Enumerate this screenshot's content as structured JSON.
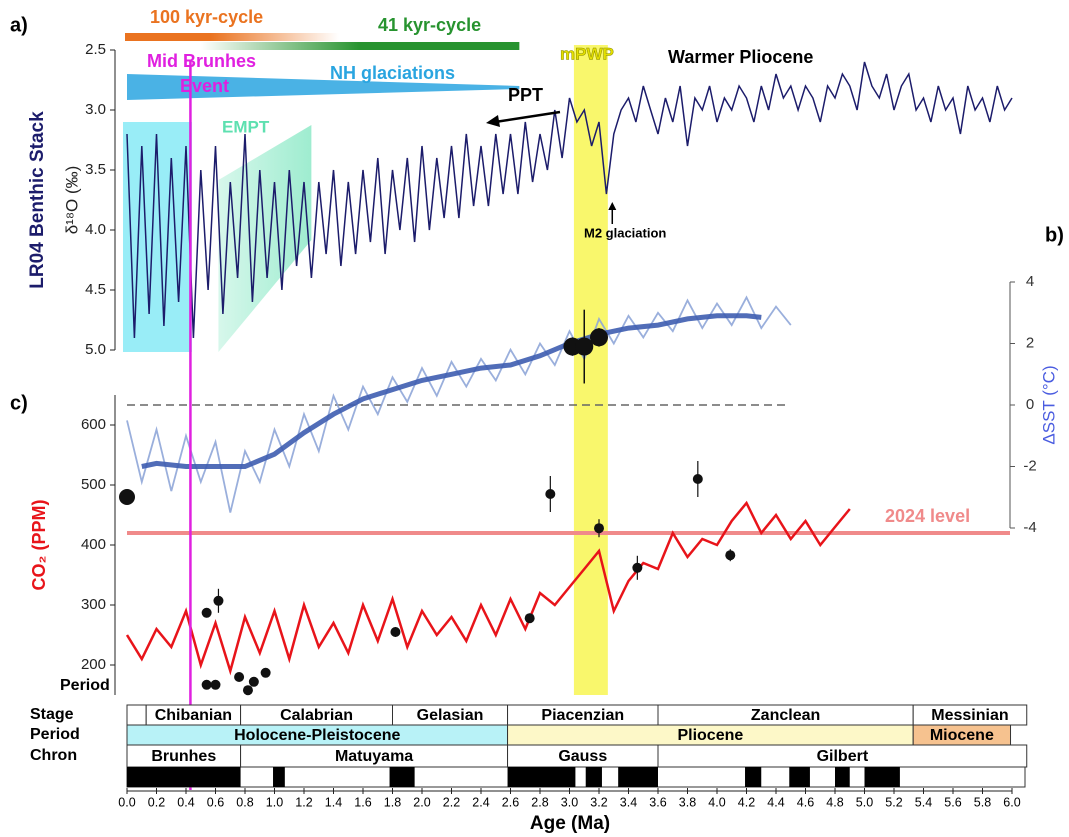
{
  "chart_data": [
    {
      "type": "line",
      "panel_label": "a)",
      "ylabel": "δ¹⁸O (‰)",
      "y_inverted": true,
      "xlim": [
        0,
        6
      ],
      "ylim": [
        2.5,
        5.0
      ],
      "yticks": [
        2.5,
        {
          "value": 3,
          "label": "3.0"
        },
        3.5,
        {
          "value": 4,
          "label": "4.0"
        },
        4.5,
        {
          "value": 5,
          "label": "5.0"
        }
      ],
      "series": [
        {
          "name": "LR04 Benthic Stack",
          "color": "#1c1c6b",
          "x": [
            0,
            0.05,
            0.1,
            0.15,
            0.2,
            0.25,
            0.3,
            0.35,
            0.4,
            0.45,
            0.5,
            0.55,
            0.6,
            0.65,
            0.7,
            0.75,
            0.8,
            0.85,
            0.9,
            0.95,
            1,
            1.05,
            1.1,
            1.15,
            1.2,
            1.25,
            1.3,
            1.35,
            1.4,
            1.45,
            1.5,
            1.55,
            1.6,
            1.65,
            1.7,
            1.75,
            1.8,
            1.85,
            1.9,
            1.95,
            2,
            2.05,
            2.1,
            2.15,
            2.2,
            2.25,
            2.3,
            2.35,
            2.4,
            2.45,
            2.5,
            2.55,
            2.6,
            2.65,
            2.7,
            2.75,
            2.8,
            2.85,
            2.9,
            2.95,
            3,
            3.05,
            3.1,
            3.15,
            3.2,
            3.25,
            3.3,
            3.35,
            3.4,
            3.45,
            3.5,
            3.55,
            3.6,
            3.65,
            3.7,
            3.75,
            3.8,
            3.85,
            3.9,
            3.95,
            4,
            4.05,
            4.1,
            4.15,
            4.2,
            4.25,
            4.3,
            4.35,
            4.4,
            4.45,
            4.5,
            4.55,
            4.6,
            4.65,
            4.7,
            4.75,
            4.8,
            4.85,
            4.9,
            4.95,
            5,
            5.05,
            5.1,
            5.15,
            5.2,
            5.25,
            5.3,
            5.35,
            5.4,
            5.45,
            5.5,
            5.55,
            5.6,
            5.65,
            5.7,
            5.75,
            5.8,
            5.85,
            5.9,
            5.95,
            6
          ],
          "values": [
            3.2,
            4.9,
            3.3,
            4.7,
            3.2,
            4.8,
            3.4,
            4.6,
            3.3,
            4.9,
            3.5,
            4.5,
            3.3,
            4.7,
            3.6,
            4.4,
            3.2,
            4.6,
            3.5,
            4.4,
            3.6,
            4.5,
            3.5,
            4.3,
            3.6,
            4.4,
            3.6,
            4.2,
            3.5,
            4.3,
            3.6,
            4.2,
            3.5,
            4.1,
            3.4,
            4.2,
            3.5,
            4.0,
            3.4,
            4.1,
            3.3,
            4.0,
            3.4,
            3.9,
            3.3,
            3.9,
            3.2,
            3.8,
            3.3,
            3.8,
            3.2,
            3.7,
            3.2,
            3.7,
            3.1,
            3.6,
            3.2,
            3.5,
            3.0,
            3.4,
            2.9,
            3.1,
            3.0,
            3.3,
            3.1,
            3.7,
            3.2,
            3.0,
            2.9,
            3.1,
            2.8,
            3.0,
            3.2,
            2.9,
            3.1,
            2.8,
            3.3,
            2.9,
            3.0,
            2.8,
            3.1,
            2.9,
            3.0,
            2.8,
            2.9,
            3.1,
            2.8,
            3.0,
            2.7,
            2.9,
            2.8,
            3.0,
            2.8,
            2.9,
            3.1,
            2.8,
            2.9,
            2.7,
            2.8,
            3.0,
            2.6,
            2.8,
            2.9,
            2.7,
            3.0,
            2.8,
            2.7,
            3.0,
            2.9,
            3.1,
            2.8,
            3.0,
            2.9,
            3.2,
            2.8,
            3.0,
            2.9,
            3.1,
            2.8,
            3.0,
            2.9
          ]
        }
      ],
      "annotations": [
        {
          "kind": "box",
          "color": "#7fe8f5",
          "x": [
            0,
            0.44
          ]
        },
        {
          "kind": "trapezoid",
          "label": "EMPT",
          "color": "#5ee0b0",
          "x": [
            0.62,
            1.25
          ]
        },
        {
          "kind": "band",
          "label": "mPWP",
          "color": "#f7f43b",
          "x": [
            3.03,
            3.26
          ]
        },
        {
          "kind": "fade-bar",
          "label": "100 kyr-cycle",
          "color": "#ea7320",
          "x": [
            0,
            1.45
          ]
        },
        {
          "kind": "rise-bar",
          "label": "41 kyr-cycle",
          "color": "#27932f",
          "x": [
            0.5,
            2.66
          ]
        },
        {
          "kind": "wedge",
          "label": "NH glaciations",
          "color": "#2aa5e0",
          "x": [
            0,
            2.66
          ]
        },
        {
          "kind": "vline",
          "label": [
            "Mid Brunhes",
            "Event"
          ],
          "color": "#e020e0",
          "x": 0.43
        },
        {
          "kind": "text",
          "label": "Warmer Pliocene"
        },
        {
          "kind": "arrow-text",
          "label": "PPT"
        },
        {
          "kind": "up-arrow",
          "label": "M2 glaciation",
          "x": 3.29
        }
      ]
    },
    {
      "type": "line",
      "panel_label": "b)",
      "ylabel": "ΔSST (°C)",
      "xlim": [
        0,
        6
      ],
      "ylim": [
        -4,
        4
      ],
      "yticks": [
        -4,
        -2,
        0,
        2,
        4
      ],
      "zero_line": 0,
      "series": [
        {
          "color": "#8fa6d8",
          "x": [
            0,
            0.1,
            0.2,
            0.3,
            0.4,
            0.5,
            0.6,
            0.7,
            0.8,
            0.9,
            1,
            1.1,
            1.2,
            1.3,
            1.4,
            1.5,
            1.6,
            1.7,
            1.8,
            1.9,
            2,
            2.1,
            2.2,
            2.3,
            2.4,
            2.5,
            2.6,
            2.7,
            2.8,
            2.9,
            3,
            3.1,
            3.2,
            3.3,
            3.4,
            3.5,
            3.6,
            3.7,
            3.8,
            3.9,
            4,
            4.1,
            4.2,
            4.3,
            4.4,
            4.5
          ],
          "values": [
            -0.5,
            -2.5,
            -0.8,
            -2.8,
            -1.0,
            -2.5,
            -1.2,
            -3.5,
            -1.5,
            -2.5,
            -0.8,
            -2.0,
            -0.3,
            -1.5,
            0.3,
            -0.8,
            0.6,
            -0.3,
            0.9,
            0.1,
            1.2,
            0.3,
            1.4,
            0.6,
            1.5,
            0.8,
            1.8,
            1.0,
            2.0,
            1.3,
            2.4,
            1.5,
            2.8,
            2.0,
            2.9,
            2.2,
            3.0,
            2.4,
            3.4,
            2.5,
            3.3,
            2.6,
            3.5,
            2.5,
            3.2,
            2.6
          ]
        },
        {
          "color": "#3e5db0",
          "x": [
            0.1,
            0.2,
            0.4,
            0.6,
            0.8,
            1,
            1.2,
            1.4,
            1.6,
            1.8,
            2,
            2.2,
            2.4,
            2.6,
            2.8,
            3,
            3.2,
            3.4,
            3.6,
            3.8,
            4,
            4.2,
            4.3
          ],
          "values": [
            -2.0,
            -1.9,
            -2.0,
            -2.0,
            -2.0,
            -1.6,
            -0.9,
            -0.3,
            0.2,
            0.5,
            0.8,
            1.0,
            1.2,
            1.3,
            1.6,
            2.0,
            2.3,
            2.5,
            2.6,
            2.8,
            2.9,
            2.9,
            2.85
          ]
        }
      ],
      "points": {
        "color": "#111111",
        "x": [
          3.02,
          3.1,
          3.2
        ],
        "values": [
          1.9,
          1.9,
          2.2
        ],
        "errors": [
          0.3,
          1.2,
          0.3
        ]
      }
    },
    {
      "type": "line",
      "panel_label": "c)",
      "ylabel": "CO₂ (PPM)",
      "xlabel": "Age (Ma)",
      "xlim": [
        0,
        6
      ],
      "ylim": [
        150,
        650
      ],
      "yticks": [
        200,
        300,
        400,
        500,
        600
      ],
      "xticks": [
        {
          "value": 0,
          "label": "0.0"
        },
        0.2,
        0.4,
        0.6,
        0.8,
        {
          "value": 1,
          "label": "1.0"
        },
        1.2,
        1.4,
        1.6,
        1.8,
        {
          "value": 2,
          "label": "2.0"
        },
        2.2,
        2.4,
        2.6,
        2.8,
        {
          "value": 3,
          "label": "3.0"
        },
        3.2,
        3.4,
        3.6,
        3.8,
        {
          "value": 4,
          "label": "4.0"
        },
        4.2,
        4.4,
        4.6,
        4.8,
        {
          "value": 5,
          "label": "5.0"
        },
        5.2,
        5.4,
        5.6,
        5.8,
        {
          "value": 6,
          "label": "6.0"
        }
      ],
      "series": [
        {
          "color": "#e8141a",
          "x": [
            0,
            0.1,
            0.2,
            0.3,
            0.4,
            0.5,
            0.6,
            0.7,
            0.8,
            0.9,
            1,
            1.1,
            1.2,
            1.3,
            1.4,
            1.5,
            1.6,
            1.7,
            1.8,
            1.9,
            2,
            2.1,
            2.2,
            2.3,
            2.4,
            2.5,
            2.6,
            2.7,
            2.8,
            2.9,
            3,
            3.1,
            3.2,
            3.3,
            3.4,
            3.5,
            3.6,
            3.7,
            3.8,
            3.9,
            4,
            4.1,
            4.2,
            4.3,
            4.4,
            4.5,
            4.6,
            4.7,
            4.8,
            4.9
          ],
          "values": [
            250,
            210,
            260,
            230,
            290,
            200,
            270,
            190,
            280,
            220,
            290,
            210,
            300,
            230,
            270,
            220,
            300,
            240,
            310,
            230,
            290,
            250,
            280,
            240,
            300,
            250,
            310,
            260,
            320,
            300,
            330,
            360,
            390,
            290,
            340,
            370,
            360,
            420,
            380,
            410,
            400,
            440,
            470,
            420,
            450,
            410,
            440,
            400,
            430,
            460
          ]
        }
      ],
      "points": {
        "color": "#111111",
        "x": [
          0,
          0.54,
          0.62,
          0.54,
          0.6,
          0.76,
          0.82,
          0.86,
          0.94,
          1.82,
          2.73,
          2.87,
          3.2,
          3.46,
          3.87,
          4.09
        ],
        "values": [
          480,
          287,
          307,
          167,
          167,
          180,
          158,
          172,
          187,
          255,
          278,
          485,
          428,
          362,
          510,
          383
        ],
        "errors": [
          10,
          8,
          20,
          5,
          5,
          5,
          5,
          5,
          5,
          8,
          8,
          30,
          15,
          20,
          30,
          10
        ]
      },
      "reference_line": {
        "label": "2024 level",
        "value": 420,
        "color": "#f08a8a"
      },
      "annotations": [
        {
          "label": "Period"
        }
      ]
    }
  ],
  "timescale": {
    "rows": [
      {
        "label": "Stage",
        "units": [
          {
            "name": null,
            "start": 0,
            "end": 0.13
          },
          {
            "name": "Chibanian",
            "start": 0.13,
            "end": 0.77
          },
          {
            "name": "Calabrian",
            "start": 0.77,
            "end": 1.8
          },
          {
            "name": "Gelasian",
            "start": 1.8,
            "end": 2.58
          },
          {
            "name": "Piacenzian",
            "start": 2.58,
            "end": 3.6
          },
          {
            "name": "Zanclean",
            "start": 3.6,
            "end": 5.33
          },
          {
            "name": "Messinian",
            "start": 5.33,
            "end": 6.1
          }
        ]
      },
      {
        "label": "Period",
        "units": [
          {
            "name": "Holocene-Pleistocene",
            "start": 0,
            "end": 2.58,
            "color": "#b8f2f7"
          },
          {
            "name": "Pliocene",
            "start": 2.58,
            "end": 5.33,
            "color": "#fdf8c8"
          },
          {
            "name": "Miocene",
            "start": 5.33,
            "end": 5.99,
            "color": "#f6c28f"
          }
        ]
      },
      {
        "label": "Chron",
        "units": [
          {
            "name": "Brunhes",
            "start": 0,
            "end": 0.77
          },
          {
            "name": "Matuyama",
            "start": 0.77,
            "end": 2.58
          },
          {
            "name": "Gauss",
            "start": 2.58,
            "end": 3.6
          },
          {
            "name": "Gilbert",
            "start": 3.6,
            "end": 6.1
          }
        ]
      }
    ],
    "normal_polarity": [
      [
        0,
        0.77
      ],
      [
        0.99,
        1.07
      ],
      [
        1.78,
        1.95
      ],
      [
        2.58,
        3.04
      ],
      [
        3.11,
        3.22
      ],
      [
        3.33,
        3.6
      ],
      [
        4.19,
        4.3
      ],
      [
        4.49,
        4.63
      ],
      [
        4.8,
        4.9
      ],
      [
        5.0,
        5.24
      ]
    ]
  }
}
